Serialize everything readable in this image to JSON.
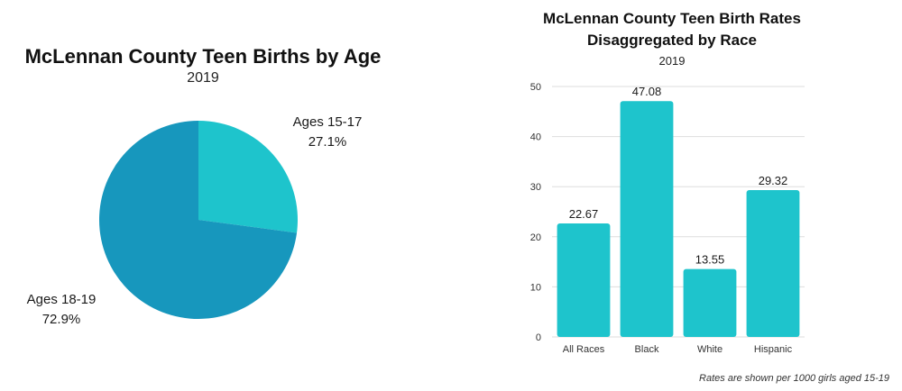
{
  "colors": {
    "pie_large": "#1797bd",
    "pie_small": "#1ec4cc",
    "bar": "#1ec4cc",
    "grid": "#dddddd",
    "text": "#222222"
  },
  "chart_data": [
    {
      "type": "pie",
      "title": "McLennan County Teen Births by Age",
      "subtitle": "2019",
      "slices": [
        {
          "label": "Ages 15-17",
          "value": 27.1,
          "value_label": "27.1%"
        },
        {
          "label": "Ages 18-19",
          "value": 72.9,
          "value_label": "72.9%"
        }
      ]
    },
    {
      "type": "bar",
      "title_lines": [
        "McLennan County Teen Birth Rates",
        "Disaggregated by Race"
      ],
      "subtitle": "2019",
      "categories": [
        "All Races",
        "Black",
        "White",
        "Hispanic"
      ],
      "values": [
        22.67,
        47.08,
        13.55,
        29.32
      ],
      "value_labels": [
        "22.67",
        "47.08",
        "13.55",
        "29.32"
      ],
      "ylim": [
        0,
        50
      ],
      "yticks": [
        0,
        10,
        20,
        30,
        40,
        50
      ],
      "grid": true,
      "note": "Rates are shown per 1000 girls aged 15-19"
    }
  ]
}
